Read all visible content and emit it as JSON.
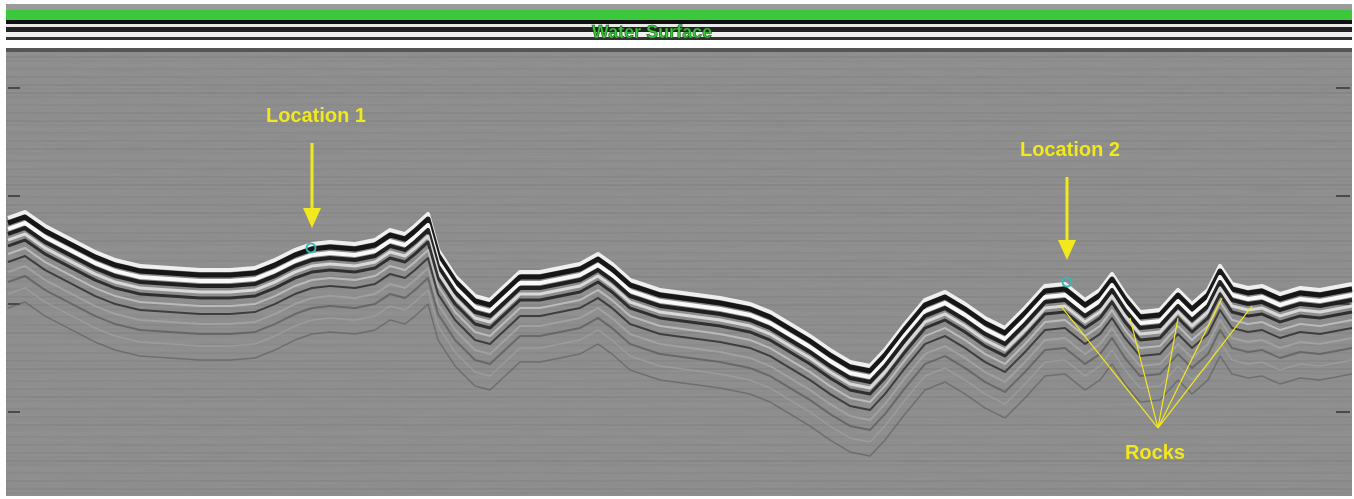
{
  "labels": {
    "water_surface": "Water Surface",
    "location_1": "Location 1",
    "location_2": "Location 2",
    "rocks": "Rocks"
  },
  "colors": {
    "annotation": "#f2e81e",
    "water_surface": "#3cc83c",
    "marker": "#36b6b6",
    "background": "#8a8a8a"
  },
  "annotations": {
    "location_1_marker": "circle",
    "location_2_marker": "circle",
    "rocks_pointer_count": 5
  }
}
